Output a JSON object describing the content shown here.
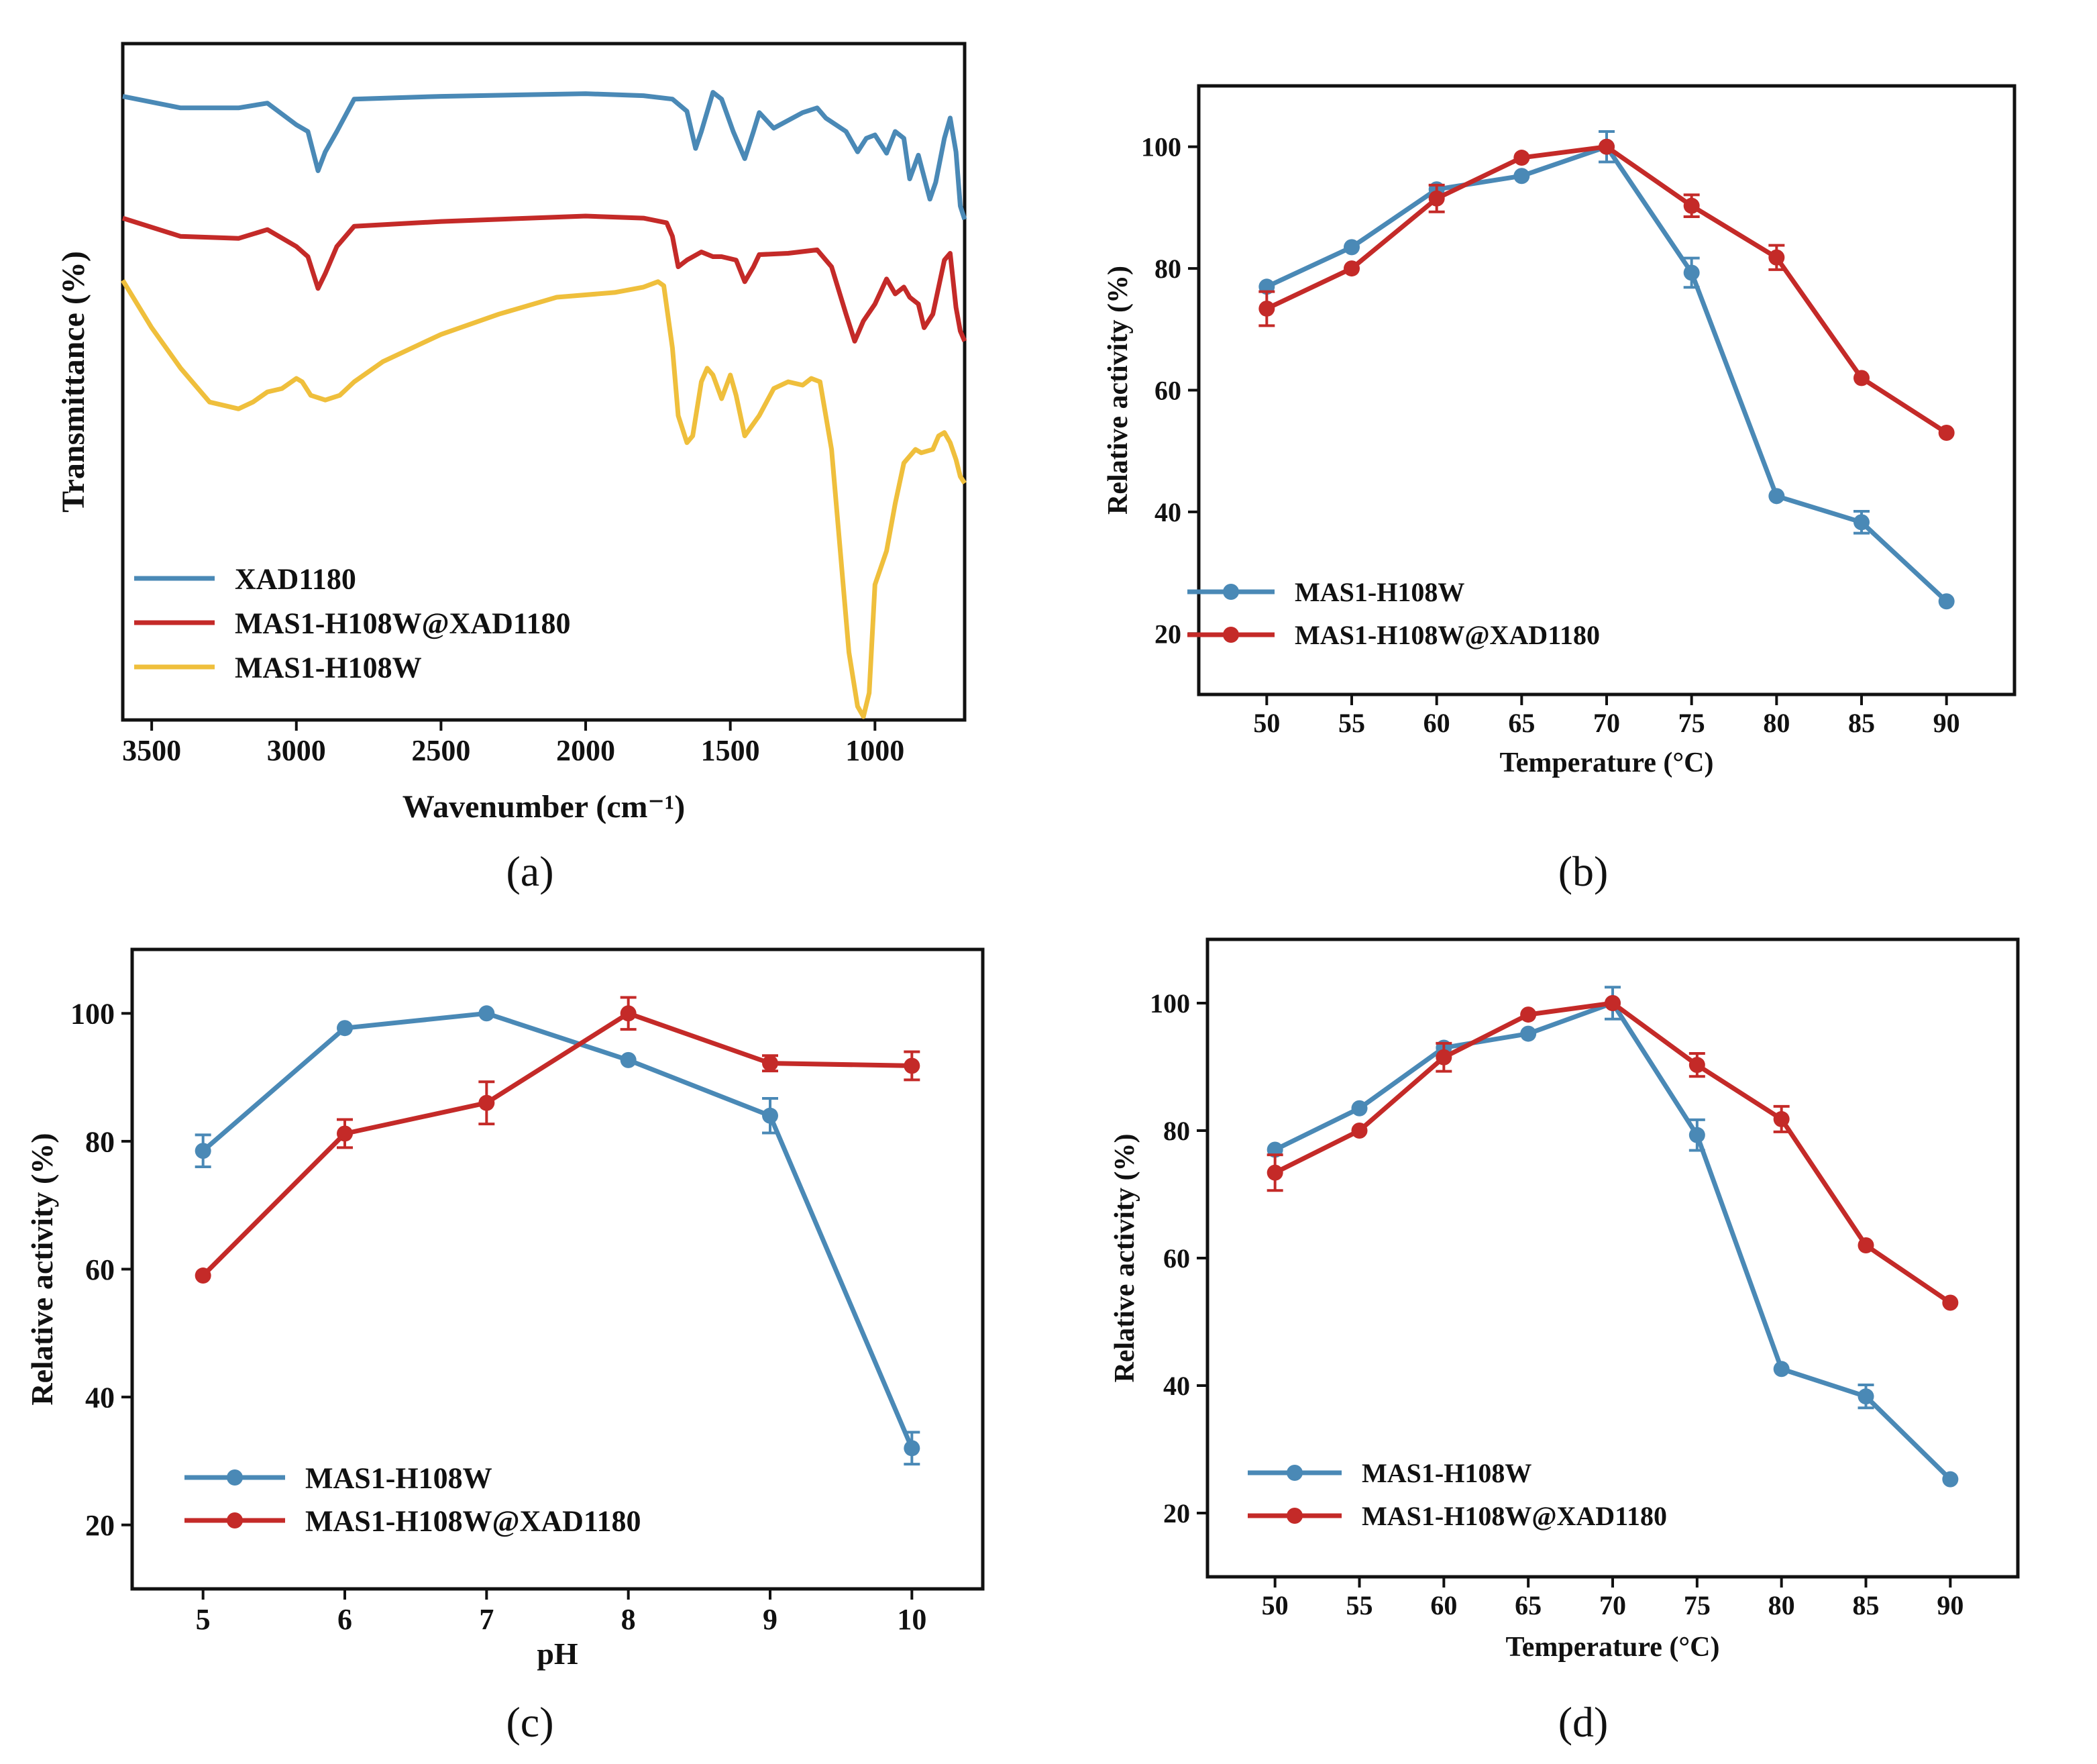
{
  "colors": {
    "blue": "#4a89b6",
    "red": "#c42a28",
    "yellow": "#efbf3c",
    "axis": "#111111"
  },
  "panels": [
    {
      "label": "(a)"
    },
    {
      "label": "(b)"
    },
    {
      "label": "(c)"
    },
    {
      "label": "(d)"
    }
  ],
  "chart_data": [
    {
      "id": "a",
      "type": "line",
      "title": "",
      "xlabel": "Wavenumber (cm⁻¹)",
      "ylabel": "Transmittance (%)",
      "xlim": [
        3600,
        690
      ],
      "ylim": [
        0,
        1
      ],
      "x_ticks": [
        3500,
        3000,
        2500,
        2000,
        1500,
        1000
      ],
      "y_ticks_shown": false,
      "legend_position": "bottom-left",
      "series": [
        {
          "name": "XAD1180",
          "color_key": "blue",
          "points": [
            [
              3600,
              0.922
            ],
            [
              3400,
              0.905
            ],
            [
              3200,
              0.905
            ],
            [
              3100,
              0.912
            ],
            [
              3000,
              0.88
            ],
            [
              2960,
              0.87
            ],
            [
              2925,
              0.812
            ],
            [
              2900,
              0.84
            ],
            [
              2860,
              0.87
            ],
            [
              2800,
              0.918
            ],
            [
              2500,
              0.922
            ],
            [
              2000,
              0.926
            ],
            [
              1800,
              0.923
            ],
            [
              1700,
              0.918
            ],
            [
              1650,
              0.9
            ],
            [
              1620,
              0.845
            ],
            [
              1600,
              0.87
            ],
            [
              1560,
              0.928
            ],
            [
              1530,
              0.918
            ],
            [
              1490,
              0.87
            ],
            [
              1450,
              0.83
            ],
            [
              1420,
              0.87
            ],
            [
              1400,
              0.898
            ],
            [
              1350,
              0.875
            ],
            [
              1250,
              0.898
            ],
            [
              1200,
              0.905
            ],
            [
              1170,
              0.89
            ],
            [
              1100,
              0.87
            ],
            [
              1060,
              0.84
            ],
            [
              1030,
              0.86
            ],
            [
              1000,
              0.865
            ],
            [
              960,
              0.838
            ],
            [
              930,
              0.87
            ],
            [
              900,
              0.86
            ],
            [
              880,
              0.8
            ],
            [
              850,
              0.835
            ],
            [
              810,
              0.77
            ],
            [
              790,
              0.795
            ],
            [
              760,
              0.86
            ],
            [
              740,
              0.89
            ],
            [
              720,
              0.84
            ],
            [
              705,
              0.76
            ],
            [
              690,
              0.74
            ]
          ]
        },
        {
          "name": "MAS1-H108W@XAD1180",
          "color_key": "red",
          "points": [
            [
              3600,
              0.742
            ],
            [
              3400,
              0.715
            ],
            [
              3200,
              0.712
            ],
            [
              3100,
              0.725
            ],
            [
              3000,
              0.7
            ],
            [
              2960,
              0.685
            ],
            [
              2925,
              0.638
            ],
            [
              2900,
              0.66
            ],
            [
              2860,
              0.7
            ],
            [
              2800,
              0.73
            ],
            [
              2500,
              0.737
            ],
            [
              2000,
              0.745
            ],
            [
              1800,
              0.742
            ],
            [
              1720,
              0.735
            ],
            [
              1700,
              0.715
            ],
            [
              1680,
              0.67
            ],
            [
              1650,
              0.68
            ],
            [
              1600,
              0.692
            ],
            [
              1560,
              0.685
            ],
            [
              1530,
              0.685
            ],
            [
              1480,
              0.68
            ],
            [
              1450,
              0.648
            ],
            [
              1420,
              0.67
            ],
            [
              1400,
              0.688
            ],
            [
              1300,
              0.69
            ],
            [
              1200,
              0.695
            ],
            [
              1150,
              0.67
            ],
            [
              1100,
              0.6
            ],
            [
              1070,
              0.56
            ],
            [
              1040,
              0.59
            ],
            [
              1000,
              0.615
            ],
            [
              960,
              0.652
            ],
            [
              930,
              0.63
            ],
            [
              900,
              0.64
            ],
            [
              880,
              0.625
            ],
            [
              850,
              0.615
            ],
            [
              830,
              0.58
            ],
            [
              800,
              0.6
            ],
            [
              760,
              0.68
            ],
            [
              740,
              0.69
            ],
            [
              720,
              0.61
            ],
            [
              705,
              0.575
            ],
            [
              690,
              0.56
            ]
          ]
        },
        {
          "name": "MAS1-H108W",
          "color_key": "yellow",
          "points": [
            [
              3600,
              0.65
            ],
            [
              3500,
              0.58
            ],
            [
              3400,
              0.52
            ],
            [
              3300,
              0.47
            ],
            [
              3200,
              0.46
            ],
            [
              3150,
              0.47
            ],
            [
              3100,
              0.485
            ],
            [
              3050,
              0.49
            ],
            [
              3000,
              0.505
            ],
            [
              2980,
              0.5
            ],
            [
              2950,
              0.48
            ],
            [
              2900,
              0.473
            ],
            [
              2850,
              0.48
            ],
            [
              2800,
              0.5
            ],
            [
              2700,
              0.53
            ],
            [
              2500,
              0.57
            ],
            [
              2300,
              0.6
            ],
            [
              2100,
              0.625
            ],
            [
              1900,
              0.632
            ],
            [
              1800,
              0.64
            ],
            [
              1750,
              0.648
            ],
            [
              1730,
              0.642
            ],
            [
              1700,
              0.55
            ],
            [
              1680,
              0.45
            ],
            [
              1650,
              0.41
            ],
            [
              1630,
              0.42
            ],
            [
              1600,
              0.5
            ],
            [
              1580,
              0.52
            ],
            [
              1560,
              0.51
            ],
            [
              1530,
              0.475
            ],
            [
              1500,
              0.51
            ],
            [
              1480,
              0.48
            ],
            [
              1450,
              0.42
            ],
            [
              1400,
              0.45
            ],
            [
              1350,
              0.49
            ],
            [
              1300,
              0.5
            ],
            [
              1250,
              0.495
            ],
            [
              1220,
              0.505
            ],
            [
              1190,
              0.5
            ],
            [
              1150,
              0.4
            ],
            [
              1120,
              0.25
            ],
            [
              1090,
              0.1
            ],
            [
              1060,
              0.02
            ],
            [
              1040,
              0.005
            ],
            [
              1020,
              0.04
            ],
            [
              1000,
              0.2
            ],
            [
              960,
              0.25
            ],
            [
              930,
              0.32
            ],
            [
              900,
              0.38
            ],
            [
              860,
              0.4
            ],
            [
              840,
              0.395
            ],
            [
              800,
              0.4
            ],
            [
              780,
              0.42
            ],
            [
              760,
              0.425
            ],
            [
              740,
              0.41
            ],
            [
              720,
              0.385
            ],
            [
              705,
              0.36
            ],
            [
              690,
              0.35
            ]
          ]
        }
      ]
    },
    {
      "id": "b",
      "type": "line",
      "title": "",
      "xlabel": "Temperature (°C)",
      "ylabel": "Relative activity (%)",
      "xlim": [
        46,
        94
      ],
      "ylim": [
        10,
        110
      ],
      "x_ticks": [
        50,
        55,
        60,
        65,
        70,
        75,
        80,
        85,
        90
      ],
      "y_ticks": [
        20,
        40,
        60,
        80,
        100
      ],
      "legend_position": "bottom-left",
      "series": [
        {
          "name": "MAS1-H108W",
          "color_key": "blue",
          "x": [
            50,
            55,
            60,
            65,
            70,
            75,
            80,
            85,
            90
          ],
          "values": [
            77,
            83.5,
            93,
            95.2,
            100,
            79.3,
            42.6,
            38.3,
            25.3
          ],
          "errors": [
            0,
            0,
            0,
            0,
            2.5,
            2.4,
            0,
            1.8,
            0
          ]
        },
        {
          "name": "MAS1-H108W@XAD1180",
          "color_key": "red",
          "x": [
            50,
            55,
            60,
            65,
            70,
            75,
            80,
            85,
            90
          ],
          "values": [
            73.4,
            80,
            91.5,
            98.2,
            100,
            90.3,
            81.8,
            62,
            53
          ],
          "errors": [
            2.8,
            0,
            2.2,
            0,
            0,
            1.8,
            2,
            0,
            0
          ]
        }
      ]
    },
    {
      "id": "c",
      "type": "line",
      "title": "",
      "xlabel": "pH",
      "ylabel": "Relative activity (%)",
      "xlim": [
        4.5,
        10.5
      ],
      "ylim": [
        10,
        110
      ],
      "x_ticks": [
        5,
        6,
        7,
        8,
        9,
        10
      ],
      "y_ticks": [
        20,
        40,
        60,
        80,
        100
      ],
      "legend_position": "bottom-left",
      "series": [
        {
          "name": "MAS1-H108W",
          "color_key": "blue",
          "x": [
            5,
            6,
            7,
            8,
            9,
            10
          ],
          "values": [
            78.5,
            97.7,
            100,
            92.7,
            84,
            32
          ],
          "errors": [
            2.5,
            0,
            0,
            0,
            2.7,
            2.5
          ]
        },
        {
          "name": "MAS1-H108W@XAD1180",
          "color_key": "red",
          "x": [
            5,
            6,
            7,
            8,
            9,
            10
          ],
          "values": [
            59,
            81.2,
            86,
            100,
            92.2,
            91.8
          ],
          "errors": [
            0,
            2.2,
            3.3,
            2.5,
            1.2,
            2.2
          ]
        }
      ]
    },
    {
      "id": "d",
      "type": "line",
      "title": "",
      "xlabel": "Temperature (°C)",
      "ylabel": "Relative activity (%)",
      "xlim": [
        46,
        94
      ],
      "ylim": [
        10,
        110
      ],
      "x_ticks": [
        50,
        55,
        60,
        65,
        70,
        75,
        80,
        85,
        90
      ],
      "y_ticks": [
        20,
        40,
        60,
        80,
        100
      ],
      "legend_position": "bottom-left",
      "series": [
        {
          "name": "MAS1-H108W",
          "color_key": "blue",
          "x": [
            50,
            55,
            60,
            65,
            70,
            75,
            80,
            85,
            90
          ],
          "values": [
            77,
            83.5,
            93,
            95.2,
            100,
            79.3,
            42.6,
            38.3,
            25.3
          ],
          "errors": [
            0,
            0,
            0,
            0,
            2.5,
            2.4,
            0,
            1.8,
            0
          ]
        },
        {
          "name": "MAS1-H108W@XAD1180",
          "color_key": "red",
          "x": [
            50,
            55,
            60,
            65,
            70,
            75,
            80,
            85,
            90
          ],
          "values": [
            73.4,
            80,
            91.5,
            98.2,
            100,
            90.3,
            81.8,
            62,
            53
          ],
          "errors": [
            2.8,
            0,
            2.2,
            0,
            0,
            1.8,
            2,
            0,
            0
          ]
        }
      ]
    }
  ]
}
